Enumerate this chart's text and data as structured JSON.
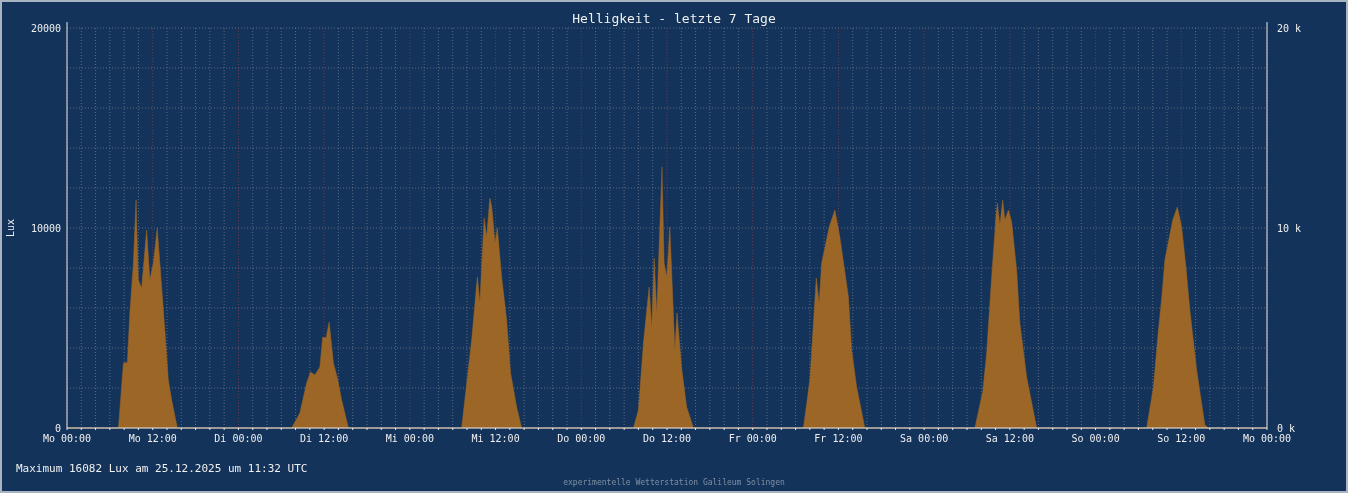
{
  "chart_data": {
    "type": "area",
    "title": "Helligkeit - letzte 7 Tage",
    "ylabel": "Lux",
    "x": [
      "2025-12-22T00:00",
      "2025-12-22T07:12",
      "2025-12-22T07:54",
      "2025-12-22T08:27",
      "2025-12-22T08:48",
      "2025-12-22T09:18",
      "2025-12-22T09:40",
      "2025-12-22T09:59",
      "2025-12-22T10:27",
      "2025-12-22T11:09",
      "2025-12-22T11:36",
      "2025-12-22T12:05",
      "2025-12-22T12:38",
      "2025-12-22T13:15",
      "2025-12-22T13:42",
      "2025-12-22T14:11",
      "2025-12-22T14:39",
      "2025-12-22T15:27",
      "2025-12-23T07:27",
      "2025-12-23T08:36",
      "2025-12-23T09:33",
      "2025-12-23T10:06",
      "2025-12-23T10:42",
      "2025-12-23T11:24",
      "2025-12-23T11:48",
      "2025-12-23T12:16",
      "2025-12-23T12:42",
      "2025-12-23T13:18",
      "2025-12-23T13:51",
      "2025-12-23T14:27",
      "2025-12-23T15:24",
      "2025-12-24T07:15",
      "2025-12-24T08:39",
      "2025-12-24T09:27",
      "2025-12-24T09:48",
      "2025-12-24T10:24",
      "2025-12-24T10:45",
      "2025-12-24T11:12",
      "2025-12-24T11:28",
      "2025-12-24T11:55",
      "2025-12-24T12:15",
      "2025-12-24T12:51",
      "2025-12-24T13:33",
      "2025-12-24T14:06",
      "2025-12-24T14:57",
      "2025-12-24T15:39",
      "2025-12-25T07:18",
      "2025-12-25T08:00",
      "2025-12-25T08:42",
      "2025-12-25T09:30",
      "2025-12-25T09:52",
      "2025-12-25T10:12",
      "2025-12-25T10:34",
      "2025-12-25T11:18",
      "2025-12-25T11:36",
      "2025-12-25T11:58",
      "2025-12-25T12:24",
      "2025-12-25T13:06",
      "2025-12-25T13:24",
      "2025-12-25T14:03",
      "2025-12-25T14:45",
      "2025-12-25T15:42",
      "2025-12-26T07:06",
      "2025-12-26T08:00",
      "2025-12-26T08:30",
      "2025-12-26T08:54",
      "2025-12-26T09:18",
      "2025-12-26T09:39",
      "2025-12-26T10:06",
      "2025-12-26T10:42",
      "2025-12-26T11:30",
      "2025-12-26T12:12",
      "2025-12-26T12:48",
      "2025-12-26T13:24",
      "2025-12-26T13:51",
      "2025-12-26T14:33",
      "2025-12-26T15:42",
      "2025-12-27T07:06",
      "2025-12-27T08:12",
      "2025-12-27T08:45",
      "2025-12-27T09:27",
      "2025-12-27T10:03",
      "2025-12-27T10:15",
      "2025-12-27T10:36",
      "2025-12-27T11:00",
      "2025-12-27T11:18",
      "2025-12-27T11:48",
      "2025-12-27T12:15",
      "2025-12-27T12:57",
      "2025-12-27T13:24",
      "2025-12-27T14:21",
      "2025-12-27T15:45",
      "2025-12-28T07:09",
      "2025-12-28T08:06",
      "2025-12-28T08:48",
      "2025-12-28T09:18",
      "2025-12-28T09:42",
      "2025-12-28T10:12",
      "2025-12-28T10:48",
      "2025-12-28T11:27",
      "2025-12-28T12:03",
      "2025-12-28T12:39",
      "2025-12-28T13:12",
      "2025-12-28T14:09",
      "2025-12-28T15:18",
      "2025-12-28T15:48",
      "2025-12-29T00:00"
    ],
    "series": [
      {
        "color": "#9c6627",
        "values": [
          0,
          0,
          3250,
          3270,
          5750,
          8250,
          11400,
          7400,
          7000,
          9900,
          7400,
          8250,
          10000,
          7050,
          4900,
          2400,
          1400,
          0,
          0,
          750,
          2250,
          2800,
          2650,
          3050,
          4550,
          4500,
          5300,
          3250,
          2500,
          1400,
          0,
          0,
          4400,
          7550,
          6250,
          10500,
          9550,
          11500,
          11050,
          9250,
          10000,
          7550,
          5400,
          2750,
          1050,
          0,
          0,
          900,
          4250,
          7050,
          5000,
          8500,
          5750,
          13050,
          8250,
          7550,
          10050,
          3900,
          5750,
          3000,
          1050,
          0,
          0,
          2400,
          5250,
          7500,
          6250,
          8250,
          9000,
          10050,
          10900,
          9550,
          8050,
          6550,
          3900,
          2050,
          0,
          0,
          1800,
          3750,
          7550,
          10550,
          11250,
          10150,
          11400,
          10400,
          10900,
          10300,
          7900,
          5250,
          2550,
          0,
          0,
          2050,
          4900,
          6650,
          8400,
          9300,
          10400,
          11050,
          10050,
          8050,
          5900,
          2900,
          150,
          0,
          0
        ]
      }
    ],
    "xlim": [
      "2025-12-22T00:00",
      "2025-12-29T00:00"
    ],
    "xticks": [
      {
        "value": "2025-12-22T00:00",
        "label": "Mo 00:00"
      },
      {
        "value": "2025-12-22T02:00",
        "label": null
      },
      {
        "value": "2025-12-22T04:00",
        "label": null
      },
      {
        "value": "2025-12-22T06:00",
        "label": null
      },
      {
        "value": "2025-12-22T08:00",
        "label": null
      },
      {
        "value": "2025-12-22T10:00",
        "label": null
      },
      {
        "value": "2025-12-22T12:00",
        "label": "Mo 12:00"
      },
      {
        "value": "2025-12-22T14:00",
        "label": null
      },
      {
        "value": "2025-12-22T16:00",
        "label": null
      },
      {
        "value": "2025-12-22T18:00",
        "label": null
      },
      {
        "value": "2025-12-22T20:00",
        "label": null
      },
      {
        "value": "2025-12-22T22:00",
        "label": null
      },
      {
        "value": "2025-12-23T00:00",
        "label": "Di 00:00"
      },
      {
        "value": "2025-12-23T02:00",
        "label": null
      },
      {
        "value": "2025-12-23T04:00",
        "label": null
      },
      {
        "value": "2025-12-23T06:00",
        "label": null
      },
      {
        "value": "2025-12-23T08:00",
        "label": null
      },
      {
        "value": "2025-12-23T10:00",
        "label": null
      },
      {
        "value": "2025-12-23T12:00",
        "label": "Di 12:00"
      },
      {
        "value": "2025-12-23T14:00",
        "label": null
      },
      {
        "value": "2025-12-23T16:00",
        "label": null
      },
      {
        "value": "2025-12-23T18:00",
        "label": null
      },
      {
        "value": "2025-12-23T20:00",
        "label": null
      },
      {
        "value": "2025-12-23T22:00",
        "label": null
      },
      {
        "value": "2025-12-24T00:00",
        "label": "Mi 00:00"
      },
      {
        "value": "2025-12-24T02:00",
        "label": null
      },
      {
        "value": "2025-12-24T04:00",
        "label": null
      },
      {
        "value": "2025-12-24T06:00",
        "label": null
      },
      {
        "value": "2025-12-24T08:00",
        "label": null
      },
      {
        "value": "2025-12-24T10:00",
        "label": null
      },
      {
        "value": "2025-12-24T12:00",
        "label": "Mi 12:00"
      },
      {
        "value": "2025-12-24T14:00",
        "label": null
      },
      {
        "value": "2025-12-24T16:00",
        "label": null
      },
      {
        "value": "2025-12-24T18:00",
        "label": null
      },
      {
        "value": "2025-12-24T20:00",
        "label": null
      },
      {
        "value": "2025-12-24T22:00",
        "label": null
      },
      {
        "value": "2025-12-25T00:00",
        "label": "Do 00:00"
      },
      {
        "value": "2025-12-25T02:00",
        "label": null
      },
      {
        "value": "2025-12-25T04:00",
        "label": null
      },
      {
        "value": "2025-12-25T06:00",
        "label": null
      },
      {
        "value": "2025-12-25T08:00",
        "label": null
      },
      {
        "value": "2025-12-25T10:00",
        "label": null
      },
      {
        "value": "2025-12-25T12:00",
        "label": "Do 12:00"
      },
      {
        "value": "2025-12-25T14:00",
        "label": null
      },
      {
        "value": "2025-12-25T16:00",
        "label": null
      },
      {
        "value": "2025-12-25T18:00",
        "label": null
      },
      {
        "value": "2025-12-25T20:00",
        "label": null
      },
      {
        "value": "2025-12-25T22:00",
        "label": null
      },
      {
        "value": "2025-12-26T00:00",
        "label": "Fr 00:00"
      },
      {
        "value": "2025-12-26T02:00",
        "label": null
      },
      {
        "value": "2025-12-26T04:00",
        "label": null
      },
      {
        "value": "2025-12-26T06:00",
        "label": null
      },
      {
        "value": "2025-12-26T08:00",
        "label": null
      },
      {
        "value": "2025-12-26T10:00",
        "label": null
      },
      {
        "value": "2025-12-26T12:00",
        "label": "Fr 12:00"
      },
      {
        "value": "2025-12-26T14:00",
        "label": null
      },
      {
        "value": "2025-12-26T16:00",
        "label": null
      },
      {
        "value": "2025-12-26T18:00",
        "label": null
      },
      {
        "value": "2025-12-26T20:00",
        "label": null
      },
      {
        "value": "2025-12-26T22:00",
        "label": null
      },
      {
        "value": "2025-12-27T00:00",
        "label": "Sa 00:00"
      },
      {
        "value": "2025-12-27T02:00",
        "label": null
      },
      {
        "value": "2025-12-27T04:00",
        "label": null
      },
      {
        "value": "2025-12-27T06:00",
        "label": null
      },
      {
        "value": "2025-12-27T08:00",
        "label": null
      },
      {
        "value": "2025-12-27T10:00",
        "label": null
      },
      {
        "value": "2025-12-27T12:00",
        "label": "Sa 12:00"
      },
      {
        "value": "2025-12-27T14:00",
        "label": null
      },
      {
        "value": "2025-12-27T16:00",
        "label": null
      },
      {
        "value": "2025-12-27T18:00",
        "label": null
      },
      {
        "value": "2025-12-27T20:00",
        "label": null
      },
      {
        "value": "2025-12-27T22:00",
        "label": null
      },
      {
        "value": "2025-12-28T00:00",
        "label": "So 00:00"
      },
      {
        "value": "2025-12-28T02:00",
        "label": null
      },
      {
        "value": "2025-12-28T04:00",
        "label": null
      },
      {
        "value": "2025-12-28T06:00",
        "label": null
      },
      {
        "value": "2025-12-28T08:00",
        "label": null
      },
      {
        "value": "2025-12-28T10:00",
        "label": null
      },
      {
        "value": "2025-12-28T12:00",
        "label": "So 12:00"
      },
      {
        "value": "2025-12-28T14:00",
        "label": null
      },
      {
        "value": "2025-12-28T16:00",
        "label": null
      },
      {
        "value": "2025-12-28T18:00",
        "label": null
      },
      {
        "value": "2025-12-28T20:00",
        "label": null
      },
      {
        "value": "2025-12-28T22:00",
        "label": null
      },
      {
        "value": "2025-12-29T00:00",
        "label": "Mo 00:00"
      }
    ],
    "ylim": [
      0,
      20000
    ],
    "yticks": [
      0,
      {
        "value": 2000,
        "label": null
      },
      {
        "value": 4000,
        "label": null
      },
      {
        "value": 6000,
        "label": null
      },
      {
        "value": 8000,
        "label": null
      },
      10000,
      {
        "value": 12000,
        "label": null
      },
      {
        "value": 14000,
        "label": null
      },
      {
        "value": 16000,
        "label": null
      },
      {
        "value": 18000,
        "label": null
      },
      20000
    ],
    "y2lim": [
      0,
      20000
    ],
    "y2ticks": [
      {
        "value": 0,
        "label": "0 k"
      },
      {
        "value": 10000,
        "label": "10 k"
      },
      {
        "value": 20000,
        "label": "20 k"
      }
    ],
    "grid": true,
    "annotations": [
      "Maximum 16082 Lux am 25.12.2025 um 11:32 UTC",
      "experimentelle Wetterstation Galileum Solingen"
    ]
  }
}
